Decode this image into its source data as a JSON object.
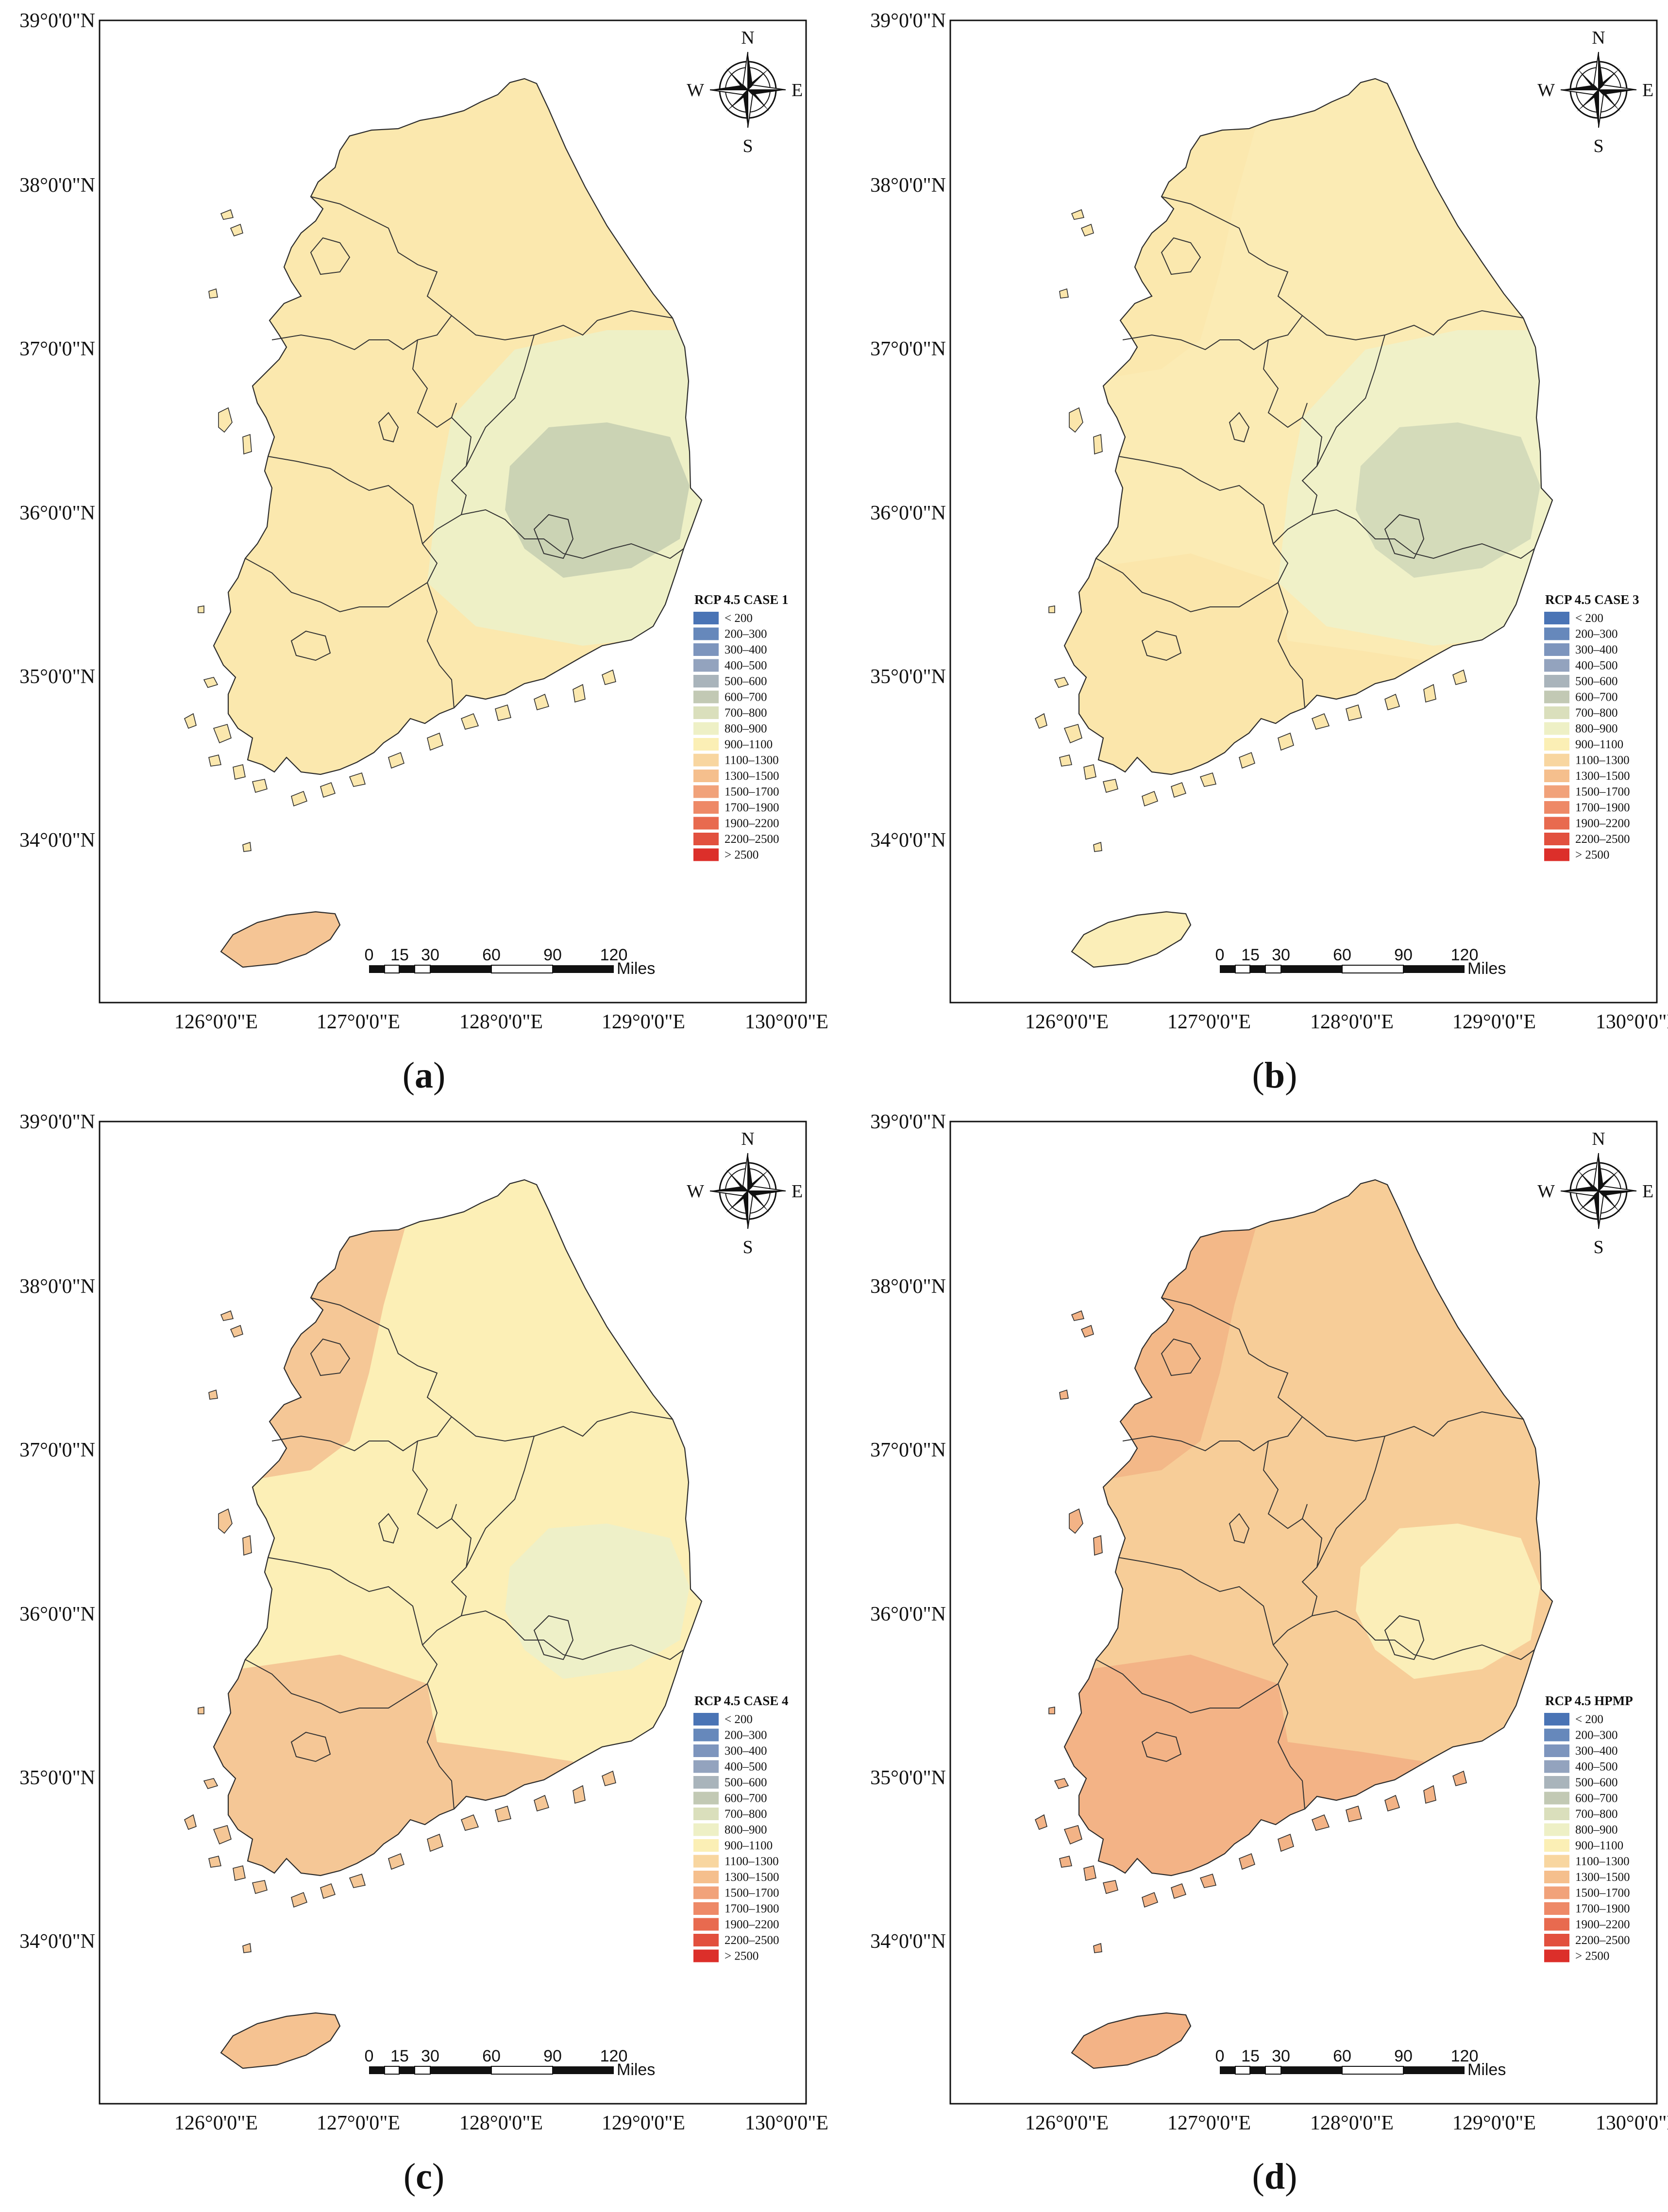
{
  "figure": {
    "panels": [
      {
        "id": "a",
        "caption": "a",
        "legend_title": "RCP 4.5 CASE 1",
        "region_fills": {
          "base": "#fbe8ae",
          "nw": "#fbe8ae",
          "south": "#fbe8ae",
          "jeju": "#f5c595",
          "east": "#eef0c6",
          "east_core": "#cbd3b4"
        }
      },
      {
        "id": "b",
        "caption": "b",
        "legend_title": "RCP 4.5 CASE 3",
        "region_fills": {
          "base": "#fbebb4",
          "nw": "#fbe8ae",
          "south": "#fbe6ab",
          "jeju": "#fbeeb8",
          "east": "#f0f1c8",
          "east_core": "#d4dbba"
        }
      },
      {
        "id": "c",
        "caption": "c",
        "legend_title": "RCP 4.5 CASE 4",
        "region_fills": {
          "base": "#fcefb6",
          "nw": "#f5c796",
          "south": "#f5c796",
          "jeju": "#f5c291",
          "east": "#fcefb6",
          "east_core": "#eef0c8"
        }
      },
      {
        "id": "d",
        "caption": "d",
        "legend_title": "RCP 4.5 HPMP",
        "region_fills": {
          "base": "#f7cd98",
          "nw": "#f3b888",
          "south": "#f3b386",
          "jeju": "#f3b386",
          "east": "#f7cd98",
          "east_core": "#fbeeb8"
        }
      }
    ],
    "lat_labels": [
      "39°0'0\"N",
      "38°0'0\"N",
      "37°0'0\"N",
      "36°0'0\"N",
      "35°0'0\"N",
      "34°0'0\"N"
    ],
    "lon_labels": [
      "126°0'0\"E",
      "127°0'0\"E",
      "128°0'0\"E",
      "129°0'0\"E",
      "130°0'0\"E"
    ],
    "legend_classes": [
      {
        "label": "< 200",
        "color": "#4a74b5"
      },
      {
        "label": "200–300",
        "color": "#6688bb"
      },
      {
        "label": "300–400",
        "color": "#7d95bd"
      },
      {
        "label": "400–500",
        "color": "#93a3be"
      },
      {
        "label": "500–600",
        "color": "#a9b4bb"
      },
      {
        "label": "600–700",
        "color": "#c2c9b4"
      },
      {
        "label": "700–800",
        "color": "#dadfbc"
      },
      {
        "label": "800–900",
        "color": "#eef0c6"
      },
      {
        "label": "900–1100",
        "color": "#fbefb5"
      },
      {
        "label": "1100–1300",
        "color": "#f8d6a0"
      },
      {
        "label": "1300–1500",
        "color": "#f5bf8d"
      },
      {
        "label": "1500–1700",
        "color": "#f1a27a"
      },
      {
        "label": "1700–1900",
        "color": "#ee8967"
      },
      {
        "label": "1900–2200",
        "color": "#e86a4f"
      },
      {
        "label": "2200–2500",
        "color": "#e2503e"
      },
      {
        "label": "> 2500",
        "color": "#dc2f2a"
      }
    ],
    "scale_bar": {
      "ticks": [
        "0",
        "15",
        "30",
        "60",
        "90",
        "120"
      ],
      "units": "Miles"
    },
    "compass": {
      "n": "N",
      "s": "S",
      "e": "E",
      "w": "W"
    }
  }
}
